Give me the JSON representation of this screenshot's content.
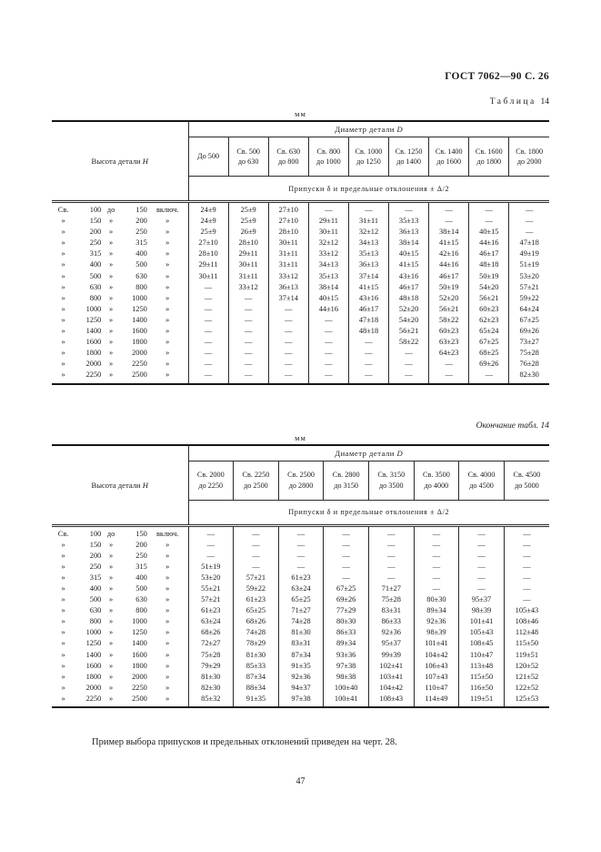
{
  "page": {
    "gost_header": "ГОСТ 7062—90 С. 26",
    "mm_unit": "мм",
    "footer_note": "Пример выбора припусков и предельных отклонений приведен на черт. 28.",
    "page_number": "47"
  },
  "tables": [
    {
      "caption_word": "Таблица",
      "caption_num": "14",
      "corner_label": "Высота детали",
      "corner_var": "Н",
      "diameter_label": "Диаметр детали",
      "diameter_var": "D",
      "allowance_label": "Припуски δ и предельные отклонения ± Δ/2",
      "columns": [
        "До 500",
        "Св. 500\nдо 630",
        "Св. 630\nдо 800",
        "Св. 800\nдо 1000",
        "Св. 1000\nдо 1250",
        "Св. 1250\nдо 1400",
        "Св. 1400\nдо 1600",
        "Св. 1600\nдо 1800",
        "Св. 1800\nдо 2000"
      ],
      "rows": [
        {
          "label": [
            "Св.",
            "100",
            "до",
            "150",
            "включ."
          ],
          "values": [
            "24±9",
            "25±9",
            "27±10",
            "—",
            "—",
            "—",
            "—",
            "—",
            "—"
          ]
        },
        {
          "label": [
            "»",
            "150",
            "»",
            "200",
            "»"
          ],
          "values": [
            "24±9",
            "25±9",
            "27±10",
            "29±11",
            "31±11",
            "35±13",
            "—",
            "—",
            "—"
          ]
        },
        {
          "label": [
            "»",
            "200",
            "»",
            "250",
            "»"
          ],
          "values": [
            "25±9",
            "26±9",
            "28±10",
            "30±11",
            "32±12",
            "36±13",
            "38±14",
            "40±15",
            "—"
          ]
        },
        {
          "label": [
            "»",
            "250",
            "»",
            "315",
            "»"
          ],
          "values": [
            "27±10",
            "28±10",
            "30±11",
            "32±12",
            "34±13",
            "38±14",
            "41±15",
            "44±16",
            "47±18"
          ]
        },
        {
          "label": [
            "»",
            "315",
            "»",
            "400",
            "»"
          ],
          "values": [
            "28±10",
            "29±11",
            "31±11",
            "33±12",
            "35±13",
            "40±15",
            "42±16",
            "46±17",
            "49±19"
          ]
        },
        {
          "label": [
            "»",
            "400",
            "»",
            "500",
            "»"
          ],
          "values": [
            "29±11",
            "30±11",
            "31±11",
            "34±13",
            "36±13",
            "41±15",
            "44±16",
            "48±18",
            "51±19"
          ]
        },
        {
          "label": [
            "»",
            "500",
            "»",
            "630",
            "»"
          ],
          "values": [
            "30±11",
            "31±11",
            "33±12",
            "35±13",
            "37±14",
            "43±16",
            "46±17",
            "50±19",
            "53±20"
          ]
        },
        {
          "label": [
            "»",
            "630",
            "»",
            "800",
            "»"
          ],
          "values": [
            "—",
            "33±12",
            "36±13",
            "38±14",
            "41±15",
            "46±17",
            "50±19",
            "54±20",
            "57±21"
          ]
        },
        {
          "label": [
            "»",
            "800",
            "»",
            "1000",
            "»"
          ],
          "values": [
            "—",
            "—",
            "37±14",
            "40±15",
            "43±16",
            "48±18",
            "52±20",
            "56±21",
            "59±22"
          ]
        },
        {
          "label": [
            "»",
            "1000",
            "»",
            "1250",
            "»"
          ],
          "values": [
            "—",
            "—",
            "—",
            "44±16",
            "46±17",
            "52±20",
            "56±21",
            "60±23",
            "64±24"
          ]
        },
        {
          "label": [
            "»",
            "1250",
            "»",
            "1400",
            "»"
          ],
          "values": [
            "—",
            "—",
            "—",
            "—",
            "47±18",
            "54±20",
            "58±22",
            "62±23",
            "67±25"
          ]
        },
        {
          "label": [
            "»",
            "1400",
            "»",
            "1600",
            "»"
          ],
          "values": [
            "—",
            "—",
            "—",
            "—",
            "48±18",
            "56±21",
            "60±23",
            "65±24",
            "69±26"
          ]
        },
        {
          "label": [
            "»",
            "1600",
            "»",
            "1800",
            "»"
          ],
          "values": [
            "—",
            "—",
            "—",
            "—",
            "—",
            "58±22",
            "63±23",
            "67±25",
            "73±27"
          ]
        },
        {
          "label": [
            "»",
            "1800",
            "»",
            "2000",
            "»"
          ],
          "values": [
            "—",
            "—",
            "—",
            "—",
            "—",
            "—",
            "64±23",
            "68±25",
            "75±28"
          ]
        },
        {
          "label": [
            "»",
            "2000",
            "»",
            "2250",
            "»"
          ],
          "values": [
            "—",
            "—",
            "—",
            "—",
            "—",
            "—",
            "—",
            "69±26",
            "76±28"
          ]
        },
        {
          "label": [
            "»",
            "2250",
            "»",
            "2500",
            "»"
          ],
          "values": [
            "—",
            "—",
            "—",
            "—",
            "—",
            "—",
            "—",
            "—",
            "82±30"
          ]
        }
      ]
    },
    {
      "caption": "Окончание табл. 14",
      "corner_label": "Высота детали",
      "corner_var": "Н",
      "diameter_label": "Диаметр детали",
      "diameter_var": "D",
      "allowance_label": "Припуски δ и предельные отклонения ± Δ/2",
      "columns": [
        "Св. 2000\nдо 2250",
        "Св. 2250\nдо 2500",
        "Св. 2500\nдо 2800",
        "Св. 2800\nдо 3150",
        "Св. 3150\nдо 3500",
        "Св. 3500\nдо 4000",
        "Св. 4000\nдо 4500",
        "Св. 4500\nдо 5000"
      ],
      "rows": [
        {
          "label": [
            "Св.",
            "100",
            "до",
            "150",
            "включ."
          ],
          "values": [
            "—",
            "—",
            "—",
            "—",
            "—",
            "—",
            "—",
            "—"
          ]
        },
        {
          "label": [
            "»",
            "150",
            "»",
            "200",
            "»"
          ],
          "values": [
            "—",
            "—",
            "—",
            "—",
            "—",
            "—",
            "—",
            "—"
          ]
        },
        {
          "label": [
            "»",
            "200",
            "»",
            "250",
            "»"
          ],
          "values": [
            "—",
            "—",
            "—",
            "—",
            "—",
            "—",
            "—",
            "—"
          ]
        },
        {
          "label": [
            "»",
            "250",
            "»",
            "315",
            "»"
          ],
          "values": [
            "51±19",
            "—",
            "—",
            "—",
            "—",
            "—",
            "—",
            "—"
          ]
        },
        {
          "label": [
            "»",
            "315",
            "»",
            "400",
            "»"
          ],
          "values": [
            "53±20",
            "57±21",
            "61±23",
            "—",
            "—",
            "—",
            "—",
            "—"
          ]
        },
        {
          "label": [
            "»",
            "400",
            "»",
            "500",
            "»"
          ],
          "values": [
            "55±21",
            "59±22",
            "63±24",
            "67±25",
            "71±27",
            "—",
            "—",
            "—"
          ]
        },
        {
          "label": [
            "»",
            "500",
            "»",
            "630",
            "»"
          ],
          "values": [
            "57±21",
            "61±23",
            "65±25",
            "69±26",
            "75±28",
            "80±30",
            "95±37",
            "—"
          ]
        },
        {
          "label": [
            "»",
            "630",
            "»",
            "800",
            "»"
          ],
          "values": [
            "61±23",
            "65±25",
            "71±27",
            "77±29",
            "83±31",
            "89±34",
            "98±39",
            "105±43"
          ]
        },
        {
          "label": [
            "»",
            "800",
            "»",
            "1000",
            "»"
          ],
          "values": [
            "63±24",
            "68±26",
            "74±28",
            "80±30",
            "86±33",
            "92±36",
            "101±41",
            "108±46"
          ]
        },
        {
          "label": [
            "»",
            "1000",
            "»",
            "1250",
            "»"
          ],
          "values": [
            "68±26",
            "74±28",
            "81±30",
            "86±33",
            "92±36",
            "98±39",
            "105±43",
            "112±48"
          ]
        },
        {
          "label": [
            "»",
            "1250",
            "»",
            "1400",
            "»"
          ],
          "values": [
            "72±27",
            "78±29",
            "83±31",
            "89±34",
            "95±37",
            "101±41",
            "108±45",
            "115±50"
          ]
        },
        {
          "label": [
            "»",
            "1400",
            "»",
            "1600",
            "»"
          ],
          "values": [
            "75±28",
            "81±30",
            "87±34",
            "93±36",
            "99±39",
            "104±42",
            "110±47",
            "119±51"
          ]
        },
        {
          "label": [
            "»",
            "1600",
            "»",
            "1800",
            "»"
          ],
          "values": [
            "79±29",
            "85±33",
            "91±35",
            "97±38",
            "102±41",
            "106±43",
            "113±48",
            "120±52"
          ]
        },
        {
          "label": [
            "»",
            "1800",
            "»",
            "2000",
            "»"
          ],
          "values": [
            "81±30",
            "87±34",
            "92±36",
            "98±38",
            "103±41",
            "107±43",
            "115±50",
            "121±52"
          ]
        },
        {
          "label": [
            "»",
            "2000",
            "»",
            "2250",
            "»"
          ],
          "values": [
            "82±30",
            "88±34",
            "94±37",
            "100±40",
            "104±42",
            "110±47",
            "116±50",
            "122±52"
          ]
        },
        {
          "label": [
            "»",
            "2250",
            "»",
            "2500",
            "»"
          ],
          "values": [
            "85±32",
            "91±35",
            "97±38",
            "100±41",
            "108±43",
            "114±49",
            "119±51",
            "125±53"
          ]
        }
      ]
    }
  ]
}
